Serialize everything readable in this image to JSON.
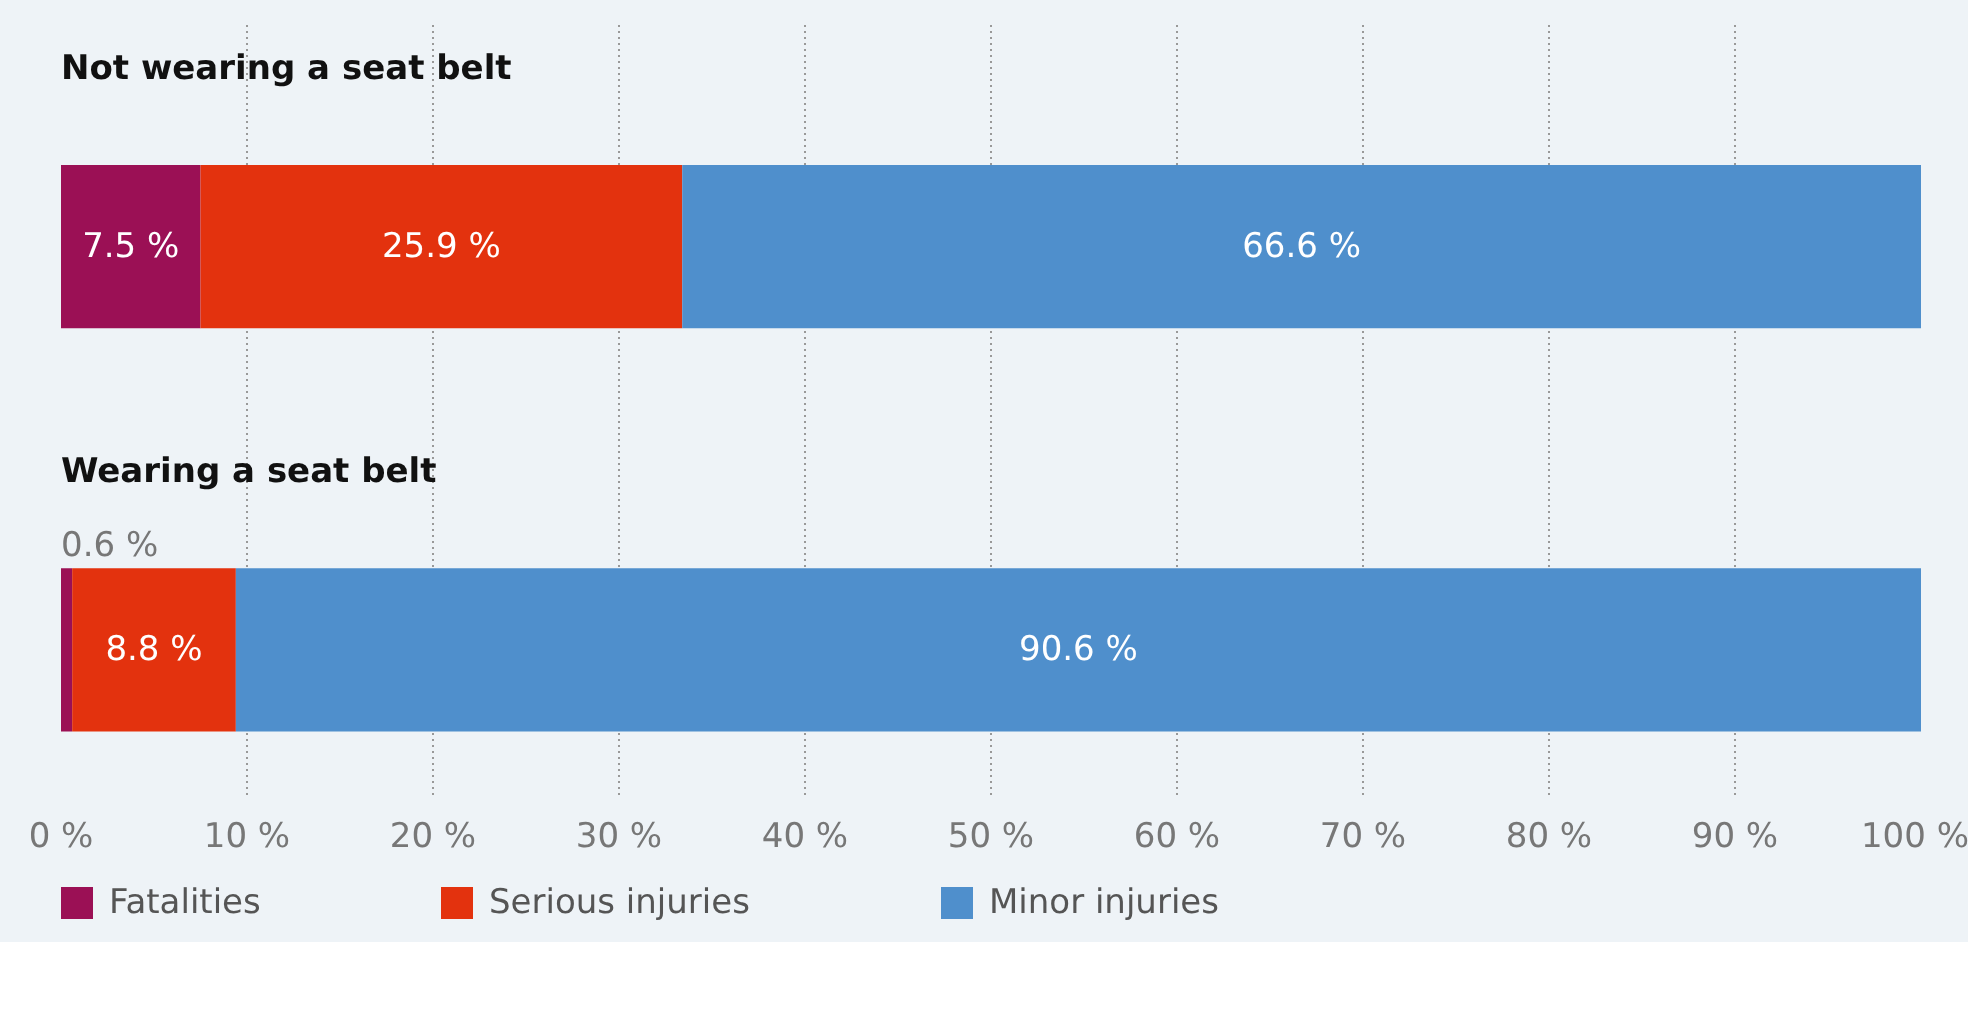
{
  "chart_data": {
    "type": "bar",
    "orientation": "horizontal",
    "stacked": true,
    "categories": [
      "Not wearing a seat belt",
      "Wearing a seat belt"
    ],
    "series": [
      {
        "name": "Fatalities",
        "color": "#9b1055",
        "values": [
          7.5,
          0.6
        ],
        "value_labels": [
          "7.5 %",
          "0.6 %"
        ]
      },
      {
        "name": "Serious injuries",
        "color": "#e3320e",
        "values": [
          25.9,
          8.8
        ],
        "value_labels": [
          "25.9 %",
          "8.8 %"
        ]
      },
      {
        "name": "Minor injuries",
        "color": "#4f8fcc",
        "values": [
          66.6,
          90.6
        ],
        "value_labels": [
          "66.6 %",
          "90.6 %"
        ]
      }
    ],
    "xlim": [
      0,
      100
    ],
    "xticks": [
      {
        "value": 0,
        "label": "0 %"
      },
      {
        "value": 10,
        "label": "10 %"
      },
      {
        "value": 20,
        "label": "20 %"
      },
      {
        "value": 30,
        "label": "30 %"
      },
      {
        "value": 40,
        "label": "40 %"
      },
      {
        "value": 50,
        "label": "50 %"
      },
      {
        "value": 60,
        "label": "60 %"
      },
      {
        "value": 70,
        "label": "70 %"
      },
      {
        "value": 80,
        "label": "80 %"
      },
      {
        "value": 90,
        "label": "90 %"
      },
      {
        "value": 100,
        "label": "100 %"
      }
    ],
    "grid": "x",
    "legend": "bottom"
  }
}
